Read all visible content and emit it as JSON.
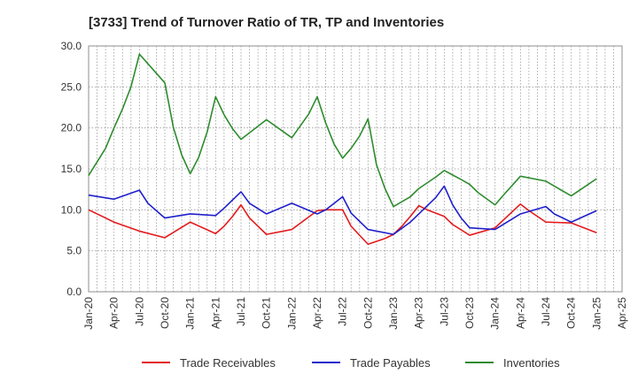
{
  "chart_data": {
    "type": "line",
    "title": "[3733]  Trend of Turnover Ratio of TR, TP and Inventories",
    "xlabel": "",
    "ylabel": "",
    "ylim": [
      0,
      30
    ],
    "yticks": [
      "0.0",
      "5.0",
      "10.0",
      "15.0",
      "20.0",
      "25.0",
      "30.0"
    ],
    "xlim": [
      0,
      63
    ],
    "xtick_labels": [
      "Jan-20",
      "Apr-20",
      "Jul-20",
      "Oct-20",
      "Jan-21",
      "Apr-21",
      "Jul-21",
      "Oct-21",
      "Jan-22",
      "Apr-22",
      "Jul-22",
      "Oct-22",
      "Jan-23",
      "Apr-23",
      "Jul-23",
      "Oct-23",
      "Jan-24",
      "Apr-24",
      "Jul-24",
      "Oct-24",
      "Jan-25",
      "Apr-25"
    ],
    "grid": true,
    "legend_position": "bottom",
    "series": [
      {
        "name": "Trade Receivables",
        "color": "#e31a1c",
        "points": [
          [
            0,
            10.0
          ],
          [
            3,
            8.5
          ],
          [
            6,
            7.4
          ],
          [
            9,
            6.6
          ],
          [
            12,
            8.5
          ],
          [
            15,
            7.1
          ],
          [
            16,
            8.0
          ],
          [
            17,
            9.2
          ],
          [
            18,
            10.6
          ],
          [
            19,
            9.0
          ],
          [
            21,
            7.0
          ],
          [
            24,
            7.6
          ],
          [
            27,
            9.9
          ],
          [
            28,
            10.0
          ],
          [
            30,
            10.0
          ],
          [
            31,
            8.0
          ],
          [
            33,
            5.8
          ],
          [
            35,
            6.5
          ],
          [
            36,
            7.0
          ],
          [
            37,
            8.0
          ],
          [
            38,
            9.2
          ],
          [
            39,
            10.5
          ],
          [
            40,
            10.0
          ],
          [
            42,
            9.2
          ],
          [
            43,
            8.2
          ],
          [
            45,
            6.9
          ],
          [
            48,
            7.8
          ],
          [
            51,
            10.7
          ],
          [
            52,
            9.9
          ],
          [
            54,
            8.5
          ],
          [
            57,
            8.4
          ],
          [
            60,
            7.2
          ]
        ]
      },
      {
        "name": "Trade Payables",
        "color": "#1f1fcc",
        "points": [
          [
            0,
            11.8
          ],
          [
            3,
            11.3
          ],
          [
            6,
            12.4
          ],
          [
            7,
            10.8
          ],
          [
            9,
            9.0
          ],
          [
            12,
            9.5
          ],
          [
            15,
            9.3
          ],
          [
            16,
            10.2
          ],
          [
            18,
            12.2
          ],
          [
            19,
            10.8
          ],
          [
            21,
            9.5
          ],
          [
            24,
            10.8
          ],
          [
            27,
            9.5
          ],
          [
            28,
            10.0
          ],
          [
            30,
            11.6
          ],
          [
            31,
            9.6
          ],
          [
            33,
            7.6
          ],
          [
            36,
            7.0
          ],
          [
            38,
            8.5
          ],
          [
            39,
            9.5
          ],
          [
            41,
            11.5
          ],
          [
            42,
            12.9
          ],
          [
            43,
            10.6
          ],
          [
            44,
            9.0
          ],
          [
            45,
            7.8
          ],
          [
            48,
            7.6
          ],
          [
            51,
            9.5
          ],
          [
            54,
            10.4
          ],
          [
            55,
            9.5
          ],
          [
            57,
            8.5
          ],
          [
            60,
            9.9
          ]
        ]
      },
      {
        "name": "Inventories",
        "color": "#2e8b2e",
        "points": [
          [
            0,
            14.2
          ],
          [
            2,
            17.5
          ],
          [
            3,
            20.0
          ],
          [
            4,
            22.3
          ],
          [
            5,
            25.0
          ],
          [
            6,
            29.0
          ],
          [
            9,
            25.5
          ],
          [
            10,
            20.1
          ],
          [
            11,
            16.7
          ],
          [
            12,
            14.4
          ],
          [
            13,
            16.4
          ],
          [
            14,
            19.5
          ],
          [
            15,
            23.8
          ],
          [
            16,
            21.6
          ],
          [
            17,
            19.9
          ],
          [
            18,
            18.6
          ],
          [
            21,
            21.0
          ],
          [
            24,
            18.8
          ],
          [
            26,
            21.7
          ],
          [
            27,
            23.8
          ],
          [
            28,
            20.6
          ],
          [
            29,
            18.0
          ],
          [
            30,
            16.3
          ],
          [
            31,
            17.5
          ],
          [
            32,
            19.0
          ],
          [
            33,
            21.1
          ],
          [
            34,
            15.5
          ],
          [
            35,
            12.6
          ],
          [
            36,
            10.4
          ],
          [
            38,
            11.6
          ],
          [
            39,
            12.6
          ],
          [
            41,
            14.0
          ],
          [
            42,
            14.8
          ],
          [
            44,
            13.7
          ],
          [
            45,
            13.1
          ],
          [
            46,
            12.1
          ],
          [
            48,
            10.6
          ],
          [
            49,
            11.8
          ],
          [
            51,
            14.1
          ],
          [
            54,
            13.5
          ],
          [
            57,
            11.7
          ],
          [
            58,
            12.4
          ],
          [
            60,
            13.8
          ]
        ]
      }
    ]
  }
}
